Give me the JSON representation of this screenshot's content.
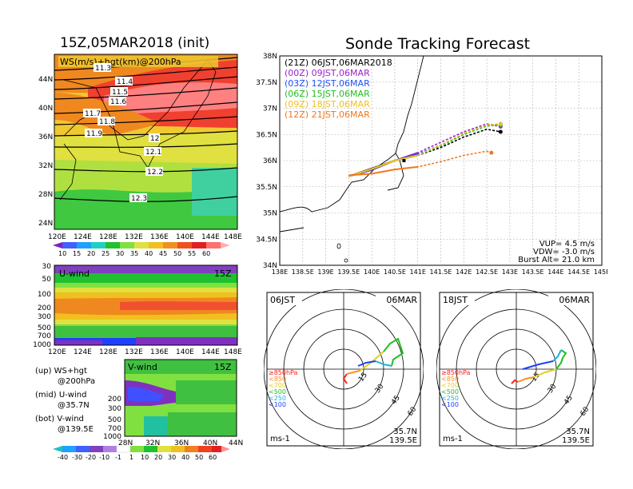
{
  "init_title": "15Z,05MAR2018 (init)",
  "forecast_title": "Sonde Tracking Forecast",
  "colors": {
    "purple": "#7b2cc8",
    "violet": "#b030e0",
    "blue": "#2060ff",
    "cyan": "#20c8ff",
    "teal": "#20d0a0",
    "green": "#10b030",
    "lgreen": "#80e040",
    "yellow": "#f0f040",
    "gold": "#f0c020",
    "orange": "#f08020",
    "red": "#ff4020",
    "pink": "#ff8080",
    "darkred": "#d02030"
  },
  "top_map": {
    "label": "WS(m/s)+hgt(km)@200hPa",
    "x_ticks": [
      "120E",
      "124E",
      "128E",
      "132E",
      "136E",
      "140E",
      "144E",
      "148E"
    ],
    "y_ticks": [
      "44N",
      "40N",
      "36N",
      "32N",
      "28N",
      "24N"
    ],
    "contour_labels": [
      "11.3",
      "11.4",
      "11.5",
      "11.6",
      "11.7",
      "11.8",
      "11.9",
      "12",
      "12.1",
      "12.2",
      "12.3"
    ],
    "colorbar_labels": [
      "10",
      "15",
      "20",
      "25",
      "30",
      "35",
      "40",
      "45",
      "50",
      "55",
      "60"
    ]
  },
  "u_wind": {
    "label": "U-wind",
    "time": "15Z",
    "y_ticks": [
      "30",
      "50",
      "100",
      "200",
      "300",
      "500",
      "700",
      "1000"
    ],
    "x_ticks": [
      "120E",
      "124E",
      "128E",
      "132E",
      "136E",
      "140E",
      "144E",
      "148E"
    ]
  },
  "v_wind": {
    "label": "V-wind",
    "time": "15Z",
    "y_ticks": [
      "200",
      "300",
      "500",
      "700",
      "1000"
    ],
    "x_ticks": [
      "28N",
      "32N",
      "36N",
      "40N",
      "44N"
    ],
    "colorbar_labels": [
      "-40",
      "-30",
      "-20",
      "-10",
      "-1",
      "1",
      "10",
      "20",
      "30",
      "40",
      "50",
      "60"
    ]
  },
  "legend_notes": [
    {
      "a": "(up) WS+hgt",
      "b": "@200hPa"
    },
    {
      "a": "(mid) U-wind",
      "b": "@35.7N"
    },
    {
      "a": "(bot) V-wind",
      "b": "@139.5E"
    }
  ],
  "track_map": {
    "y_ticks": [
      "38N",
      "37.5N",
      "37N",
      "36.5N",
      "36N",
      "35.5N",
      "35N",
      "34.5N",
      "34N"
    ],
    "x_ticks": [
      "138E",
      "138.5E",
      "139E",
      "139.5E",
      "140E",
      "140.5E",
      "141E",
      "141.5E",
      "142E",
      "142.5E",
      "143E",
      "143.5E",
      "144E",
      "144.5E",
      "145E"
    ],
    "legend": [
      {
        "text": "(21Z) 06JST,06MAR2018",
        "color": "#000000"
      },
      {
        "text": "(00Z) 09JST,06MAR",
        "color": "#a020d0"
      },
      {
        "text": "(03Z) 12JST,06MAR",
        "color": "#2050ff"
      },
      {
        "text": "(06Z) 15JST,06MAR",
        "color": "#20c020"
      },
      {
        "text": "(09Z) 18JST,06MAR",
        "color": "#f0c020"
      },
      {
        "text": "(12Z) 21JST,06MAR",
        "color": "#f07820"
      }
    ],
    "params": [
      "VUP= 4.5 m/s",
      "VDW= -3.0 m/s",
      "Burst Alt= 21.0 km"
    ]
  },
  "hodograph_left": {
    "time": "06JST",
    "date": "06MAR",
    "lat": "35.7N",
    "lon": "139.5E",
    "unit": "ms-1",
    "ring_labels": [
      "15",
      "30",
      "45",
      "60"
    ],
    "levels": [
      {
        "text": "≥850hPa",
        "color": "#ff2020"
      },
      {
        "text": "<850",
        "color": "#ff9020"
      },
      {
        "text": "<700",
        "color": "#e0d020"
      },
      {
        "text": "<500",
        "color": "#20c020"
      },
      {
        "text": "<250",
        "color": "#20b0e0"
      },
      {
        "text": "<100",
        "color": "#2040ff"
      }
    ]
  },
  "hodograph_right": {
    "time": "18JST",
    "date": "06MAR",
    "lat": "35.7N",
    "lon": "139.5E",
    "unit": "ms-1",
    "ring_labels": [
      "15",
      "30",
      "45",
      "60"
    ],
    "levels": [
      {
        "text": "≥850hPa",
        "color": "#ff2020"
      },
      {
        "text": "<850",
        "color": "#ff9020"
      },
      {
        "text": "<700",
        "color": "#e0d020"
      },
      {
        "text": "<500",
        "color": "#20c020"
      },
      {
        "text": "<250",
        "color": "#20b0e0"
      },
      {
        "text": "<100",
        "color": "#2040ff"
      }
    ]
  },
  "chart_data": [
    {
      "type": "line",
      "title": "Sonde Tracking Forecast",
      "xlim": [
        "138E",
        "145E"
      ],
      "ylim": [
        "34N",
        "38N"
      ],
      "series": [
        {
          "name": "(21Z) 06JST,06MAR2018",
          "x": [
            139.5,
            140.0,
            140.5,
            141.0,
            141.5,
            142.0,
            142.5,
            142.8
          ],
          "y": [
            35.7,
            35.85,
            36.0,
            36.1,
            36.25,
            36.45,
            36.6,
            36.55
          ]
        },
        {
          "name": "(00Z) 09JST,06MAR",
          "x": [
            139.5,
            140.0,
            140.5,
            141.0,
            141.5,
            142.0,
            142.5,
            142.8
          ],
          "y": [
            35.7,
            35.82,
            36.0,
            36.15,
            36.35,
            36.55,
            36.7,
            36.65
          ]
        },
        {
          "name": "(03Z) 12JST,06MAR",
          "x": [
            139.5,
            140.0,
            140.5,
            141.0,
            141.5,
            142.0,
            142.5,
            142.8
          ],
          "y": [
            35.7,
            35.83,
            36.0,
            36.12,
            36.3,
            36.5,
            36.68,
            36.7
          ]
        },
        {
          "name": "(06Z) 15JST,06MAR",
          "x": [
            139.5,
            140.0,
            140.5,
            141.0,
            141.5,
            142.0,
            142.5,
            142.8
          ],
          "y": [
            35.7,
            35.84,
            36.0,
            36.1,
            36.28,
            36.5,
            36.66,
            36.68
          ]
        },
        {
          "name": "(09Z) 18JST,06MAR",
          "x": [
            139.5,
            140.0,
            140.5,
            141.0,
            141.5,
            142.0,
            142.5,
            142.8
          ],
          "y": [
            35.7,
            35.84,
            36.0,
            36.1,
            36.3,
            36.52,
            36.68,
            36.7
          ]
        },
        {
          "name": "(12Z) 21JST,06MAR",
          "x": [
            139.5,
            140.0,
            140.5,
            141.0,
            141.5,
            142.0,
            142.5,
            142.6
          ],
          "y": [
            35.72,
            35.75,
            35.83,
            35.88,
            35.98,
            36.1,
            36.18,
            36.15
          ]
        }
      ]
    }
  ]
}
